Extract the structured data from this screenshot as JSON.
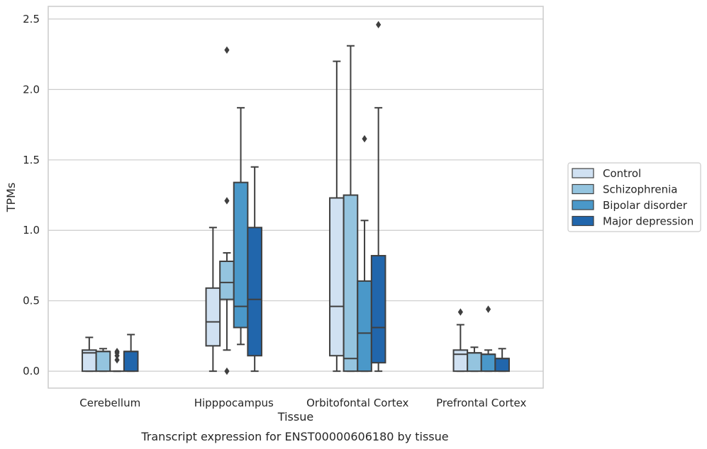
{
  "chart_data": {
    "type": "box",
    "title": "",
    "caption": "Transcript expression for ENST00000606180 by tissue",
    "xlabel": "Tissue",
    "ylabel": "TPMs",
    "ylim": [
      -0.12,
      2.59
    ],
    "yticks": [
      0.0,
      0.5,
      1.0,
      1.5,
      2.0,
      2.5
    ],
    "ytick_labels": [
      "0.0",
      "0.5",
      "1.0",
      "1.5",
      "2.0",
      "2.5"
    ],
    "grid": "horizontal",
    "legend_position": "right",
    "categories": [
      "Cerebellum",
      "Hipppocampus",
      "Orbitofontal Cortex",
      "Prefrontal Cortex"
    ],
    "series": [
      {
        "name": "Control",
        "color": "#d0e1f2",
        "boxes": [
          {
            "whisker_low": 0.0,
            "q1": 0.0,
            "median": 0.13,
            "q3": 0.15,
            "whisker_high": 0.24,
            "outliers": []
          },
          {
            "whisker_low": 0.0,
            "q1": 0.18,
            "median": 0.35,
            "q3": 0.59,
            "whisker_high": 1.02,
            "outliers": []
          },
          {
            "whisker_low": 0.0,
            "q1": 0.11,
            "median": 0.46,
            "q3": 1.23,
            "whisker_high": 2.2,
            "outliers": []
          },
          {
            "whisker_low": 0.0,
            "q1": 0.0,
            "median": 0.12,
            "q3": 0.15,
            "whisker_high": 0.33,
            "outliers": [
              0.42
            ]
          }
        ]
      },
      {
        "name": "Schizophrenia",
        "color": "#94c4df",
        "boxes": [
          {
            "whisker_low": 0.0,
            "q1": 0.0,
            "median": 0.14,
            "q3": 0.14,
            "whisker_high": 0.16,
            "outliers": []
          },
          {
            "whisker_low": 0.15,
            "q1": 0.51,
            "median": 0.63,
            "q3": 0.78,
            "whisker_high": 0.84,
            "outliers": [
              0.0,
              1.21,
              2.28
            ]
          },
          {
            "whisker_low": 0.0,
            "q1": 0.0,
            "median": 0.09,
            "q3": 1.25,
            "whisker_high": 2.31,
            "outliers": []
          },
          {
            "whisker_low": 0.0,
            "q1": 0.0,
            "median": 0.13,
            "q3": 0.13,
            "whisker_high": 0.17,
            "outliers": []
          }
        ]
      },
      {
        "name": "Bipolar disorder",
        "color": "#4a98c9",
        "boxes": [
          {
            "whisker_low": 0.0,
            "q1": 0.0,
            "median": 0.0,
            "q3": 0.0,
            "whisker_high": 0.0,
            "outliers": [
              0.08,
              0.11,
              0.13,
              0.14
            ]
          },
          {
            "whisker_low": 0.19,
            "q1": 0.31,
            "median": 0.46,
            "q3": 1.34,
            "whisker_high": 1.87,
            "outliers": []
          },
          {
            "whisker_low": 0.0,
            "q1": 0.0,
            "median": 0.27,
            "q3": 0.64,
            "whisker_high": 1.07,
            "outliers": [
              1.65
            ]
          },
          {
            "whisker_low": 0.0,
            "q1": 0.0,
            "median": 0.12,
            "q3": 0.12,
            "whisker_high": 0.15,
            "outliers": [
              0.44
            ]
          }
        ]
      },
      {
        "name": "Major depression",
        "color": "#2166ac",
        "boxes": [
          {
            "whisker_low": 0.0,
            "q1": 0.0,
            "median": 0.14,
            "q3": 0.14,
            "whisker_high": 0.26,
            "outliers": []
          },
          {
            "whisker_low": 0.0,
            "q1": 0.11,
            "median": 0.51,
            "q3": 1.02,
            "whisker_high": 1.45,
            "outliers": []
          },
          {
            "whisker_low": 0.0,
            "q1": 0.06,
            "median": 0.31,
            "q3": 0.82,
            "whisker_high": 1.87,
            "outliers": [
              2.46
            ]
          },
          {
            "whisker_low": 0.0,
            "q1": 0.0,
            "median": 0.09,
            "q3": 0.09,
            "whisker_high": 0.16,
            "outliers": []
          }
        ]
      }
    ]
  }
}
